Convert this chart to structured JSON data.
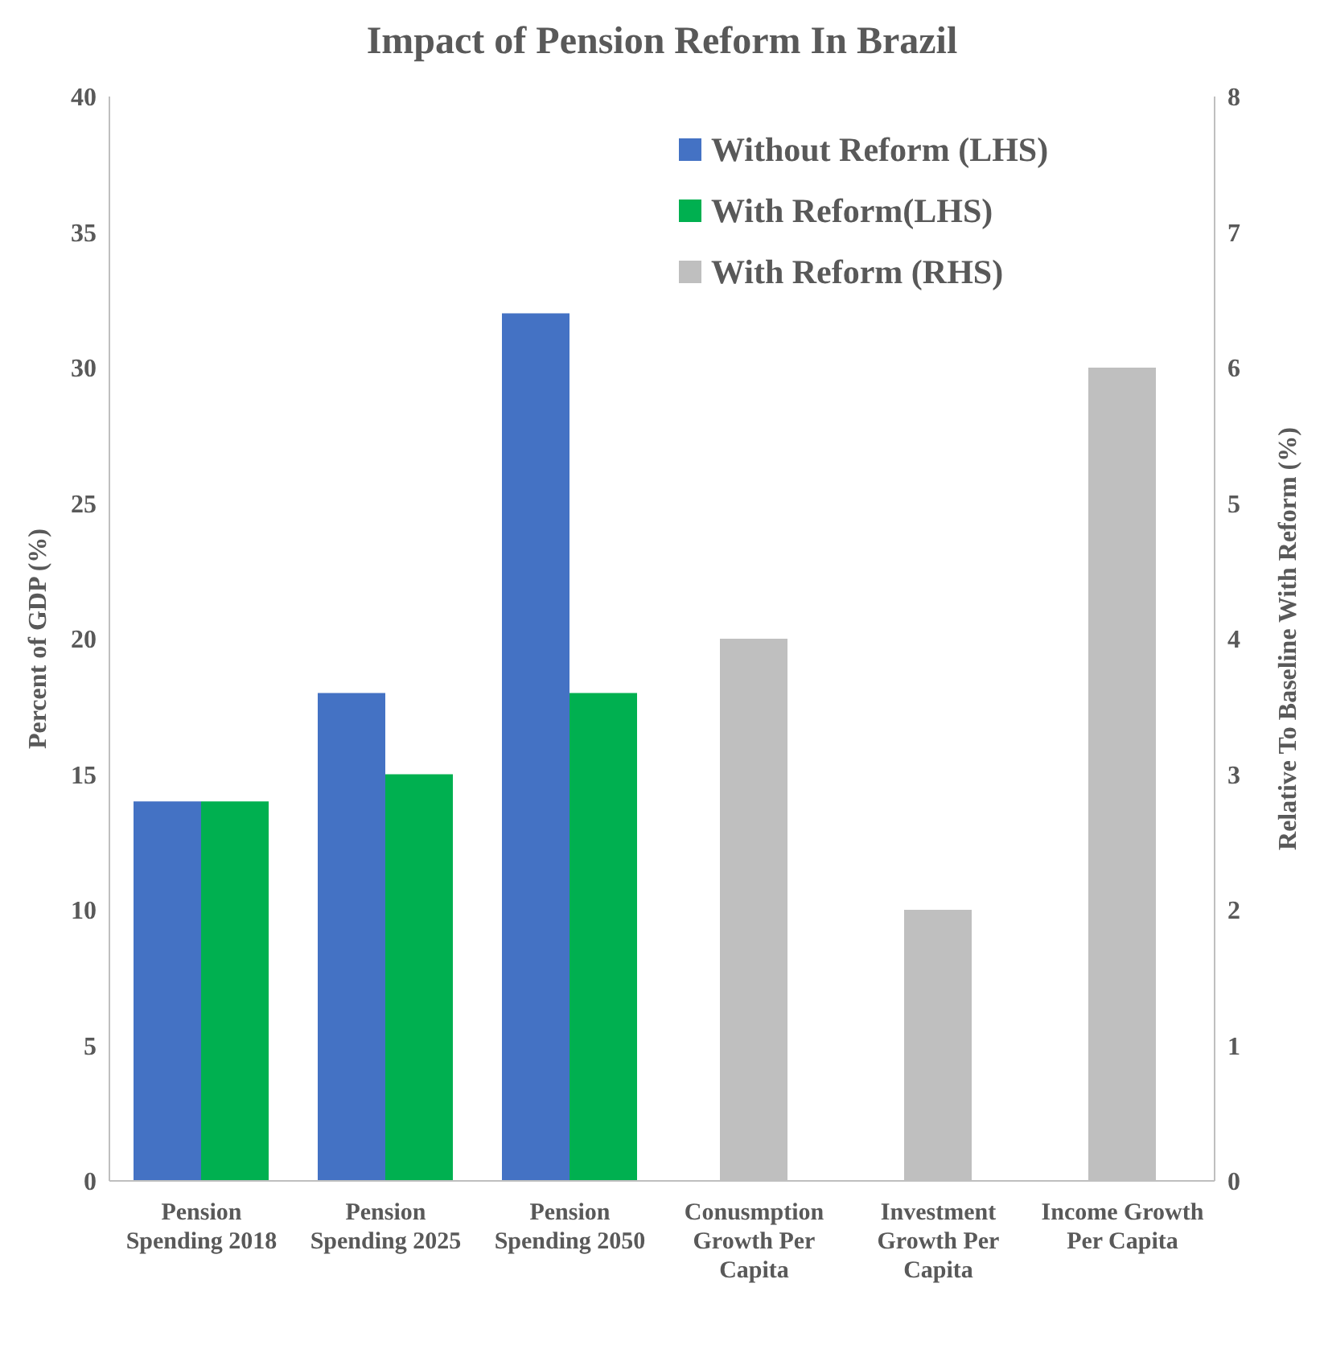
{
  "chart_data": {
    "type": "bar",
    "title": "Impact of Pension Reform In Brazil",
    "ylabel": "Percent of GDP (%)",
    "y2label": "Relative To Baseline With Reform (%)",
    "categories": [
      "Pension Spending 2018",
      "Pension Spending 2025",
      "Pension Spending 2050",
      "Conusmption Growth Per Capita",
      "Investment Growth Per Capita",
      "Income Growth Per Capita"
    ],
    "series": [
      {
        "name": "Without Reform (LHS)",
        "color": "#4472c4",
        "values": [
          14,
          18,
          32,
          null,
          null,
          null
        ]
      },
      {
        "name": "With Reform(LHS)",
        "color": "#00b050",
        "values": [
          14,
          15,
          18,
          null,
          null,
          null
        ]
      },
      {
        "name": "With Reform (RHS)",
        "color": "#bfbfbf",
        "axis": "y2",
        "values": [
          null,
          null,
          null,
          4,
          2,
          6
        ]
      }
    ],
    "ylim": [
      0,
      40
    ],
    "yticks": [
      0,
      5,
      10,
      15,
      20,
      25,
      30,
      35,
      40
    ],
    "y2lim": [
      0,
      8
    ],
    "y2ticks": [
      0,
      1,
      2,
      3,
      4,
      5,
      6,
      7,
      8
    ],
    "grid": false,
    "legend": "top right"
  }
}
